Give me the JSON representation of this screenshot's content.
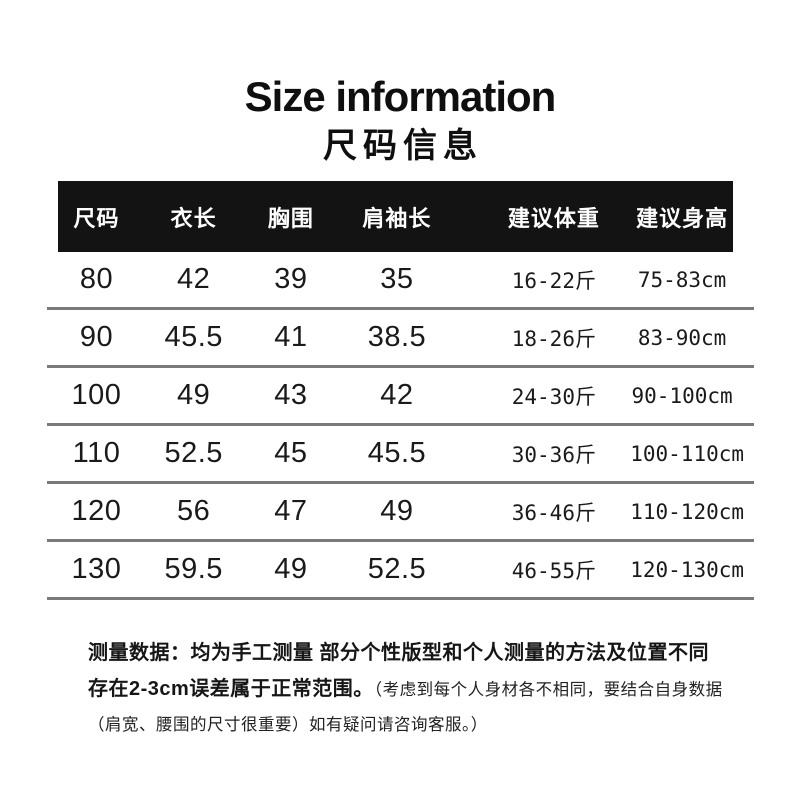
{
  "title": {
    "en": "Size information",
    "zh": "尺码信息"
  },
  "table": {
    "headers": [
      "尺码",
      "衣长",
      "胸围",
      "肩袖长",
      "建议体重",
      "建议身高"
    ],
    "rows": [
      [
        "80",
        "42",
        "39",
        "35",
        "16-22斤",
        "75-83cm"
      ],
      [
        "90",
        "45.5",
        "41",
        "38.5",
        "18-26斤",
        "83-90cm"
      ],
      [
        "100",
        "49",
        "43",
        "42",
        "24-30斤",
        "90-100cm"
      ],
      [
        "110",
        "52.5",
        "45",
        "45.5",
        "30-36斤",
        "100-110cm"
      ],
      [
        "120",
        "56",
        "47",
        "49",
        "36-46斤",
        "110-120cm"
      ],
      [
        "130",
        "59.5",
        "49",
        "52.5",
        "46-55斤",
        "120-130cm"
      ]
    ]
  },
  "footer": {
    "line1_bold": "测量数据：均为手工测量 部分个性版型和个人测量的方法及位置不同",
    "line2_bold": "存在2-3cm误差属于正常范围。",
    "line2_normal": "（考虑到每个人身材各不相同，要结合自身数据",
    "line3_normal": "（肩宽、腰围的尺寸很重要）如有疑问请咨询客服。）"
  },
  "colors": {
    "background": "#ffffff",
    "header_bg": "#131313",
    "header_text": "#ffffff",
    "body_text": "#1a1a1a",
    "divider": "#7a7a7a"
  }
}
